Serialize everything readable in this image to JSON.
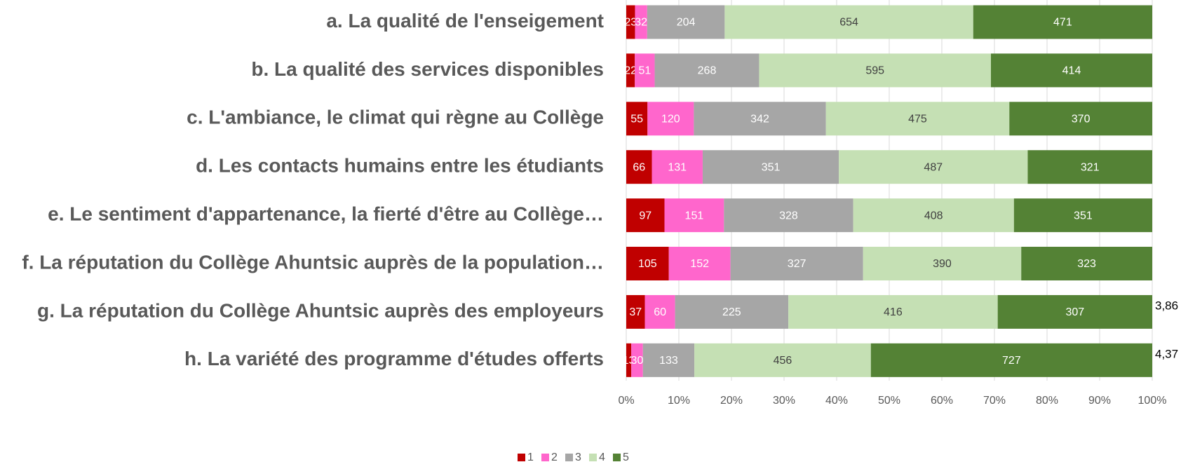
{
  "chart_data": {
    "type": "stacked_percent_barh",
    "categories": [
      "a. La qualité de l'enseigement",
      "b. La qualité des services disponibles",
      "c. L'ambiance, le climat qui règne au Collège",
      "d. Les contacts humains entre les étudiants",
      "e. Le sentiment d'appartenance, la fierté d'être au Collège…",
      "f. La réputation du Collège Ahuntsic auprès de la population…",
      "g. La réputation du Collège Ahuntsic auprès des employeurs",
      "h. La variété des programme d'études offerts"
    ],
    "series": [
      {
        "name": "1",
        "color": "#c00000",
        "values": [
          23,
          22,
          55,
          66,
          97,
          105,
          37,
          13
        ]
      },
      {
        "name": "2",
        "color": "#ff66cc",
        "values": [
          32,
          51,
          120,
          131,
          151,
          152,
          60,
          30
        ]
      },
      {
        "name": "3",
        "color": "#a6a6a6",
        "values": [
          204,
          268,
          342,
          351,
          328,
          327,
          225,
          133
        ]
      },
      {
        "name": "4",
        "color": "#c5e0b4",
        "values": [
          654,
          595,
          475,
          487,
          408,
          390,
          416,
          456
        ]
      },
      {
        "name": "5",
        "color": "#548235",
        "values": [
          471,
          414,
          370,
          321,
          351,
          323,
          307,
          727
        ]
      }
    ],
    "end_labels": [
      null,
      null,
      null,
      null,
      null,
      null,
      "3,86",
      "4,37"
    ],
    "xlim": [
      0,
      100
    ],
    "xticks": [
      {
        "value": 0,
        "label": "0%"
      },
      {
        "value": 10,
        "label": "10%"
      },
      {
        "value": 20,
        "label": "20%"
      },
      {
        "value": 30,
        "label": "30%"
      },
      {
        "value": 40,
        "label": "40%"
      },
      {
        "value": 50,
        "label": "50%"
      },
      {
        "value": 60,
        "label": "60%"
      },
      {
        "value": 70,
        "label": "70%"
      },
      {
        "value": 80,
        "label": "80%"
      },
      {
        "value": 90,
        "label": "90%"
      },
      {
        "value": 100,
        "label": "100%"
      }
    ],
    "grid": true,
    "legend": "bottom"
  }
}
